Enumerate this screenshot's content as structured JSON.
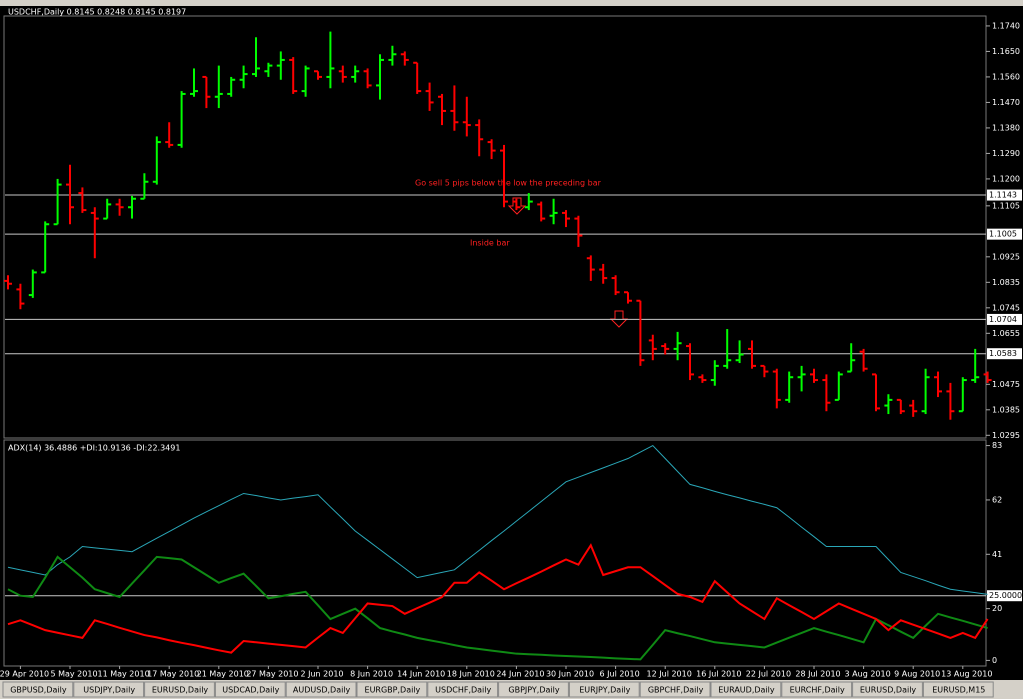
{
  "chart_data": [
    {
      "type": "ohlc",
      "title": "USDCHF,Daily  0.8145 0.8248 0.8145 0.8197",
      "x": [
        null,
        "29 Apr 2010",
        null,
        null,
        null,
        "5 May 2010",
        null,
        null,
        null,
        "11 May 2010",
        null,
        null,
        null,
        "17 May 2010",
        null,
        null,
        null,
        "21 May 2010",
        null,
        null,
        null,
        "27 May 2010",
        null,
        null,
        null,
        "2 Jun 2010",
        null,
        null,
        null,
        "8 Jun 2010",
        null,
        null,
        null,
        "14 Jun 2010",
        null,
        null,
        null,
        "18 Jun 2010",
        null,
        null,
        null,
        "24 Jun 2010",
        null,
        null,
        null,
        "30 Jun 2010",
        null,
        null,
        null,
        "6 Jul 2010",
        null,
        null,
        null,
        "12 Jul 2010",
        null,
        null,
        null,
        "16 Jul 2010",
        null,
        null,
        null,
        "22 Jul 2010",
        null,
        null,
        null,
        "28 Jul 2010",
        null,
        null,
        null,
        "3 Aug 2010",
        null,
        null,
        null,
        "9 Aug 2010",
        null,
        null,
        null,
        "13 Aug 2010",
        null,
        null
      ],
      "open": [
        1.084,
        1.081,
        1.079,
        1.087,
        1.104,
        1.118,
        1.115,
        1.108,
        1.106,
        1.111,
        1.11,
        1.113,
        1.119,
        1.133,
        1.132,
        1.15,
        1.156,
        1.149,
        1.15,
        1.155,
        1.157,
        1.158,
        1.16,
        1.162,
        1.151,
        1.158,
        1.156,
        1.158,
        1.156,
        1.158,
        1.153,
        1.162,
        1.164,
        1.161,
        1.151,
        1.149,
        1.144,
        1.14,
        1.139,
        1.133,
        1.13,
        1.112,
        1.11,
        1.111,
        1.107,
        1.108,
        1.106,
        1.092,
        1.088,
        1.085,
        1.08,
        1.077,
        1.063,
        1.061,
        1.06,
        1.061,
        1.05,
        1.049,
        1.054,
        1.056,
        1.06,
        1.054,
        1.052,
        1.042,
        1.05,
        1.051,
        1.049,
        1.042,
        1.052,
        1.059,
        1.051,
        1.04,
        1.042,
        1.04,
        1.038,
        1.05,
        1.045,
        1.038,
        1.049,
        1.051
      ],
      "high": [
        1.086,
        1.083,
        1.088,
        1.105,
        1.12,
        1.125,
        1.117,
        1.11,
        1.113,
        1.113,
        1.114,
        1.122,
        1.135,
        1.14,
        1.151,
        1.159,
        1.156,
        1.16,
        1.156,
        1.16,
        1.17,
        1.161,
        1.165,
        1.163,
        1.16,
        1.158,
        1.172,
        1.16,
        1.16,
        1.159,
        1.164,
        1.167,
        1.165,
        1.161,
        1.154,
        1.15,
        1.153,
        1.149,
        1.141,
        1.134,
        1.132,
        1.113,
        1.115,
        1.112,
        1.113,
        1.109,
        1.107,
        1.093,
        1.09,
        1.086,
        1.08,
        1.077,
        1.065,
        1.062,
        1.066,
        1.062,
        1.051,
        1.056,
        1.067,
        1.063,
        1.063,
        1.054,
        1.053,
        1.052,
        1.054,
        1.053,
        1.051,
        1.052,
        1.062,
        1.06,
        1.051,
        1.044,
        1.042,
        1.042,
        1.053,
        1.052,
        1.048,
        1.05,
        1.06,
        1.052
      ],
      "low": [
        1.081,
        1.074,
        1.078,
        1.087,
        1.104,
        1.104,
        1.108,
        1.092,
        1.106,
        1.107,
        1.106,
        1.113,
        1.118,
        1.131,
        1.131,
        1.149,
        1.145,
        1.145,
        1.149,
        1.152,
        1.156,
        1.156,
        1.155,
        1.15,
        1.149,
        1.155,
        1.152,
        1.154,
        1.154,
        1.152,
        1.148,
        1.16,
        1.16,
        1.15,
        1.144,
        1.139,
        1.137,
        1.135,
        1.128,
        1.127,
        1.11,
        1.109,
        1.109,
        1.105,
        1.104,
        1.103,
        1.096,
        1.084,
        1.083,
        1.079,
        1.076,
        1.054,
        1.056,
        1.058,
        1.056,
        1.049,
        1.048,
        1.047,
        1.053,
        1.055,
        1.053,
        1.05,
        1.039,
        1.041,
        1.045,
        1.048,
        1.038,
        1.042,
        1.052,
        1.052,
        1.038,
        1.037,
        1.037,
        1.036,
        1.037,
        1.043,
        1.035,
        1.038,
        1.048,
        1.048
      ],
      "close": [
        1.083,
        1.076,
        1.087,
        1.104,
        1.118,
        1.11,
        1.109,
        1.106,
        1.111,
        1.11,
        1.113,
        1.119,
        1.133,
        1.132,
        1.15,
        1.151,
        1.149,
        1.15,
        1.155,
        1.157,
        1.159,
        1.16,
        1.162,
        1.151,
        1.159,
        1.156,
        1.159,
        1.156,
        1.158,
        1.153,
        1.162,
        1.164,
        1.162,
        1.151,
        1.147,
        1.144,
        1.14,
        1.139,
        1.134,
        1.13,
        1.112,
        1.11,
        1.112,
        1.106,
        1.108,
        1.106,
        1.1,
        1.088,
        1.085,
        1.08,
        1.077,
        1.056,
        1.06,
        1.06,
        1.062,
        1.051,
        1.049,
        1.054,
        1.056,
        1.058,
        1.054,
        1.052,
        1.042,
        1.05,
        1.051,
        1.049,
        1.041,
        1.051,
        1.056,
        1.053,
        1.039,
        1.042,
        1.038,
        1.038,
        1.05,
        1.045,
        1.038,
        1.049,
        1.05,
        1.049
      ],
      "up_color": "#00ff00",
      "down_color": "#ff0000",
      "ylim": [
        1.0289,
        1.1768
      ],
      "yticks": [
        {
          "value": 1.174,
          "label": "1.1740"
        },
        {
          "value": 1.165,
          "label": "1.1650"
        },
        {
          "value": 1.156,
          "label": "1.1560"
        },
        {
          "value": 1.147,
          "label": "1.1470"
        },
        {
          "value": 1.138,
          "label": "1.1380"
        },
        {
          "value": 1.129,
          "label": "1.1290"
        },
        {
          "value": 1.12,
          "label": "1.1200"
        },
        {
          "value": 1.1105,
          "label": "1.1105"
        },
        {
          "value": 1.0925,
          "label": "1.0925"
        },
        {
          "value": 1.0835,
          "label": "1.0835"
        },
        {
          "value": 1.0745,
          "label": "1.0745"
        },
        {
          "value": 1.0655,
          "label": "1.0655"
        },
        {
          "value": 1.0475,
          "label": "1.0475"
        },
        {
          "value": 1.0385,
          "label": "1.0385"
        },
        {
          "value": 1.0295,
          "label": "1.0295"
        }
      ],
      "hlines": [
        1.1143,
        1.1005,
        1.0704,
        1.0583
      ],
      "annotations": [
        "Go sell 5 pips below the low  the preceding bar",
        "Inside bar"
      ]
    },
    {
      "type": "line",
      "title": "ADX(14) 36.4886 +DI:10.9136 -DI:22.3491",
      "ylim": [
        -1,
        84
      ],
      "yticks": [
        0,
        20,
        41,
        62,
        83
      ],
      "hlines": [
        {
          "value": 25,
          "label": "25.0000"
        }
      ],
      "series": [
        {
          "color": "#2aa7b8",
          "values": [
            36,
            35,
            34,
            33,
            37,
            40,
            44,
            43.5,
            43,
            42.5,
            42,
            44.6,
            47.2,
            49.8,
            52.4,
            55,
            57.4,
            59.8,
            62.2,
            64.5,
            63.7,
            62.8,
            62,
            62.7,
            63.3,
            64,
            59.3,
            54.7,
            50,
            46.4,
            42.8,
            39.2,
            35.6,
            32,
            33,
            34,
            35,
            38.8,
            42.5,
            46.3,
            50,
            53.8,
            57.6,
            61.4,
            65.2,
            69,
            70.8,
            72.6,
            74.4,
            76.2,
            78,
            80.5,
            83,
            78,
            73,
            68,
            66.7,
            65.3,
            64,
            62.8,
            61.5,
            60.3,
            59,
            55.3,
            51.5,
            47.8,
            44,
            44,
            44,
            44,
            44,
            39,
            34,
            32.4,
            30.8,
            29.1,
            27.5,
            26.8,
            26.2,
            25.5
          ]
        },
        {
          "color": "#0f8a14",
          "values": [
            27.5,
            25,
            24.5,
            32,
            40,
            36,
            32,
            27.5,
            26,
            24.5,
            29.7,
            34.8,
            40,
            39.5,
            39,
            36,
            33,
            30,
            31.8,
            33.5,
            28.8,
            24,
            24.8,
            25.7,
            26.5,
            21.3,
            16,
            18,
            20,
            16.3,
            12.5,
            11.2,
            10,
            8.7,
            7.8,
            6.9,
            5.9,
            5,
            4.4,
            3.8,
            3.2,
            2.6,
            2.4,
            2.2,
            1.9,
            1.7,
            1.5,
            1.3,
            1.1,
            0.8,
            0.6,
            0.4,
            6,
            11.7,
            10.5,
            9.4,
            8.2,
            7,
            6.5,
            6,
            5.5,
            5,
            6.9,
            8.8,
            10.6,
            12.5,
            11.1,
            9.8,
            8.4,
            7,
            16,
            13.6,
            11.1,
            8.7,
            13.4,
            18,
            16.6,
            15.3,
            13.9,
            12.5
          ]
        },
        {
          "color": "#ff0000",
          "values": [
            14,
            15.5,
            13.6,
            11.7,
            10.7,
            9.7,
            8.7,
            15.5,
            14.1,
            12.6,
            11.2,
            9.8,
            8.9,
            7.8,
            6.8,
            5.9,
            4.9,
            3.9,
            3,
            7.5,
            7,
            6.5,
            6,
            5.5,
            5,
            8.8,
            12.5,
            10.6,
            16.3,
            22,
            21.5,
            21,
            18,
            20.2,
            22.3,
            24.5,
            30,
            30,
            34,
            30.8,
            27.5,
            29.8,
            32,
            34.3,
            36.7,
            39,
            37,
            44.5,
            33,
            34.5,
            36,
            36,
            32.6,
            29.1,
            25.7,
            24.5,
            22.6,
            30.6,
            26.3,
            22,
            19,
            16,
            24,
            21.3,
            18.7,
            16,
            19,
            22,
            20,
            18,
            16,
            11.7,
            15.5,
            13.8,
            12.1,
            10.4,
            8.7,
            10.6,
            8.7,
            16
          ]
        }
      ]
    }
  ],
  "tabs": [
    "GBPUSD,Daily",
    "USDJPY,Daily",
    "EURUSD,Daily",
    "USDCAD,Daily",
    "AUDUSD,Daily",
    "EURGBP,Daily",
    "USDCHF,Daily",
    "GBPJPY,Daily",
    "EURJPY,Daily",
    "GBPCHF,Daily",
    "EURAUD,Daily",
    "EURCHF,Daily",
    "EURUSD,Daily",
    "EURUSD,M15"
  ]
}
